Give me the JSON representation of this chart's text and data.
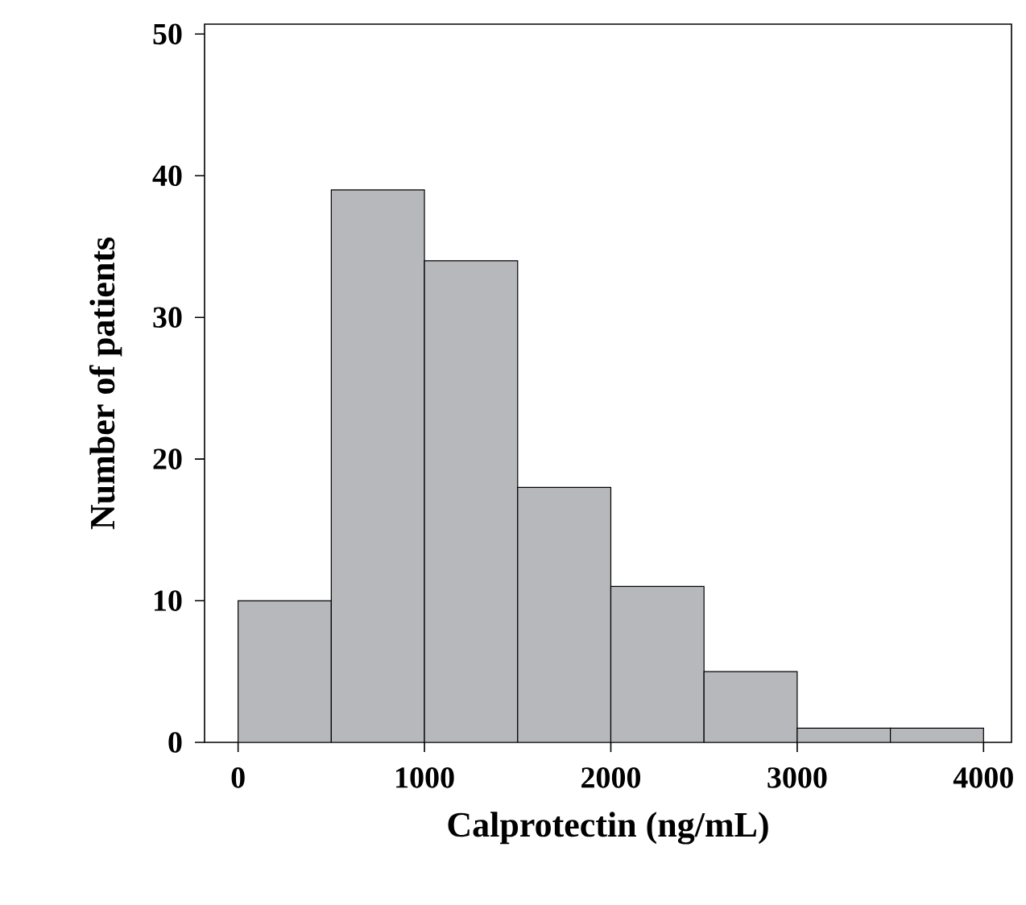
{
  "chart_data": {
    "type": "histogram",
    "xlabel": "Calprotectin (ng/mL)",
    "ylabel": "Number of patients",
    "bins": [
      0,
      500,
      1000,
      1500,
      2000,
      2500,
      3000,
      3500,
      4000
    ],
    "values": [
      10,
      39,
      34,
      18,
      11,
      5,
      1,
      1
    ],
    "color": "#b7b8bb",
    "xlim": [
      -180,
      4150
    ],
    "ylim": [
      0,
      50.7
    ],
    "xticks": [
      0,
      1000,
      2000,
      3000,
      4000
    ],
    "yticks": [
      0,
      10,
      20,
      30,
      40,
      50
    ],
    "grid": false
  }
}
